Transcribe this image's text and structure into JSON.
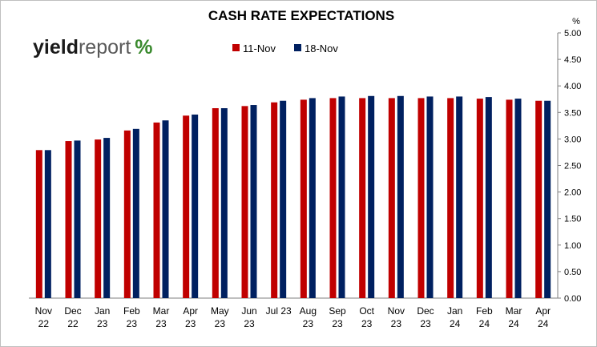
{
  "logo": {
    "part1": "yield",
    "part2": "report",
    "symbol": "%",
    "colors": {
      "green": "#3a8a2e",
      "red": "#c0202a"
    }
  },
  "chart_data": {
    "type": "bar",
    "title": "CASH RATE EXPECTATIONS",
    "y_unit_label": "%",
    "ylim": [
      0,
      5.0
    ],
    "y_ticks": [
      "0.00",
      "0.50",
      "1.00",
      "1.50",
      "2.00",
      "2.50",
      "3.00",
      "3.50",
      "4.00",
      "4.50",
      "5.00"
    ],
    "y_axis_side": "right",
    "grid": false,
    "legend_position": "top-left",
    "categories": [
      [
        "Nov",
        "22"
      ],
      [
        "Dec",
        "22"
      ],
      [
        "Jan",
        "23"
      ],
      [
        "Feb",
        "23"
      ],
      [
        "Mar",
        "23"
      ],
      [
        "Apr",
        "23"
      ],
      [
        "May",
        "23"
      ],
      [
        "Jun",
        "23"
      ],
      [
        "Jul 23",
        ""
      ],
      [
        "Aug",
        "23"
      ],
      [
        "Sep",
        "23"
      ],
      [
        "Oct",
        "23"
      ],
      [
        "Nov",
        "23"
      ],
      [
        "Dec",
        "23"
      ],
      [
        "Jan",
        "24"
      ],
      [
        "Feb",
        "24"
      ],
      [
        "Mar",
        "24"
      ],
      [
        "Apr",
        "24"
      ]
    ],
    "series": [
      {
        "name": "11-Nov",
        "color": "#c00000",
        "values": [
          2.79,
          2.96,
          2.99,
          3.16,
          3.31,
          3.44,
          3.58,
          3.62,
          3.69,
          3.74,
          3.77,
          3.77,
          3.77,
          3.77,
          3.77,
          3.76,
          3.74,
          3.72
        ]
      },
      {
        "name": "18-Nov",
        "color": "#002060",
        "values": [
          2.79,
          2.97,
          3.02,
          3.19,
          3.35,
          3.46,
          3.58,
          3.64,
          3.72,
          3.77,
          3.8,
          3.81,
          3.81,
          3.8,
          3.8,
          3.79,
          3.76,
          3.72
        ]
      }
    ]
  }
}
